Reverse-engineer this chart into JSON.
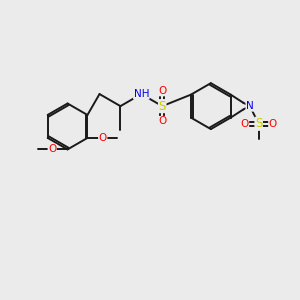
{
  "background_color": "#ebebeb",
  "bond_color": "#1a1a1a",
  "atom_colors": {
    "O": "#ff0000",
    "N": "#0000ee",
    "S": "#cccc00",
    "H": "#708090",
    "C": "#1a1a1a"
  },
  "figsize": [
    3.0,
    3.0
  ],
  "dpi": 100
}
